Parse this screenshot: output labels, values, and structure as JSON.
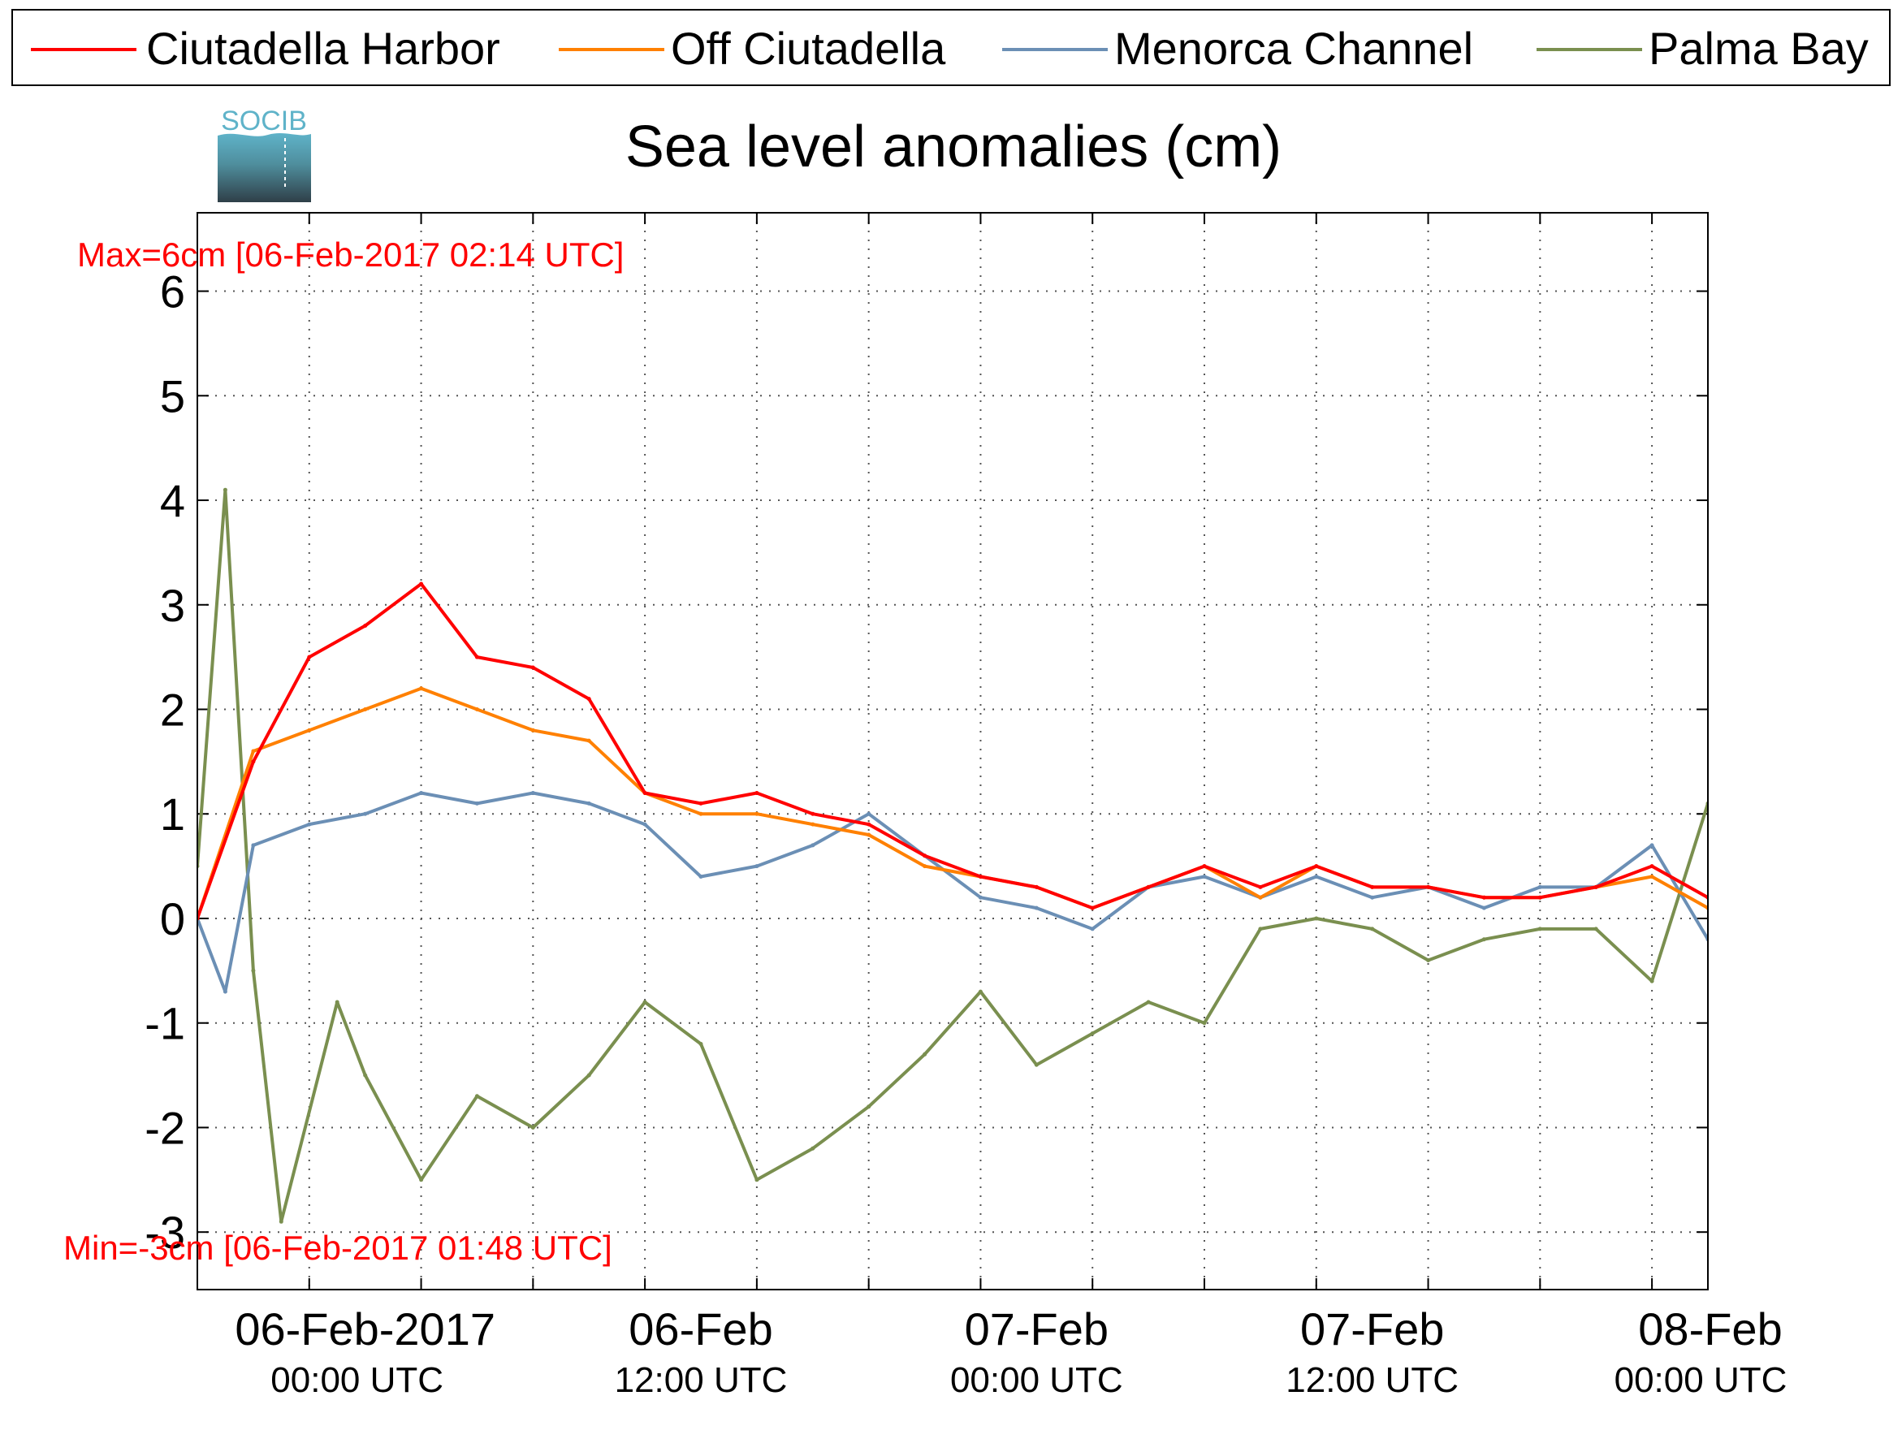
{
  "chart_data": {
    "type": "line",
    "title": "Sea level anomalies (cm)",
    "ylim": [
      -3.55,
      6.75
    ],
    "yticks": [
      -3,
      -2,
      -1,
      0,
      1,
      2,
      3,
      4,
      5,
      6
    ],
    "ytick_labels": [
      "-3",
      "-2",
      "-1",
      "0",
      "1",
      "2",
      "3",
      "4",
      "5",
      "6"
    ],
    "xlim": [
      "2017-02-05 18:00",
      "2017-02-08 00:00"
    ],
    "xticks_major": [
      {
        "x": "2017-02-06 00:00",
        "line1": "06-Feb-2017",
        "line2": "00:00 UTC"
      },
      {
        "x": "2017-02-06 12:00",
        "line1": "06-Feb",
        "line2": "12:00 UTC"
      },
      {
        "x": "2017-02-07 00:00",
        "line1": "07-Feb",
        "line2": "00:00 UTC"
      },
      {
        "x": "2017-02-07 12:00",
        "line1": "07-Feb",
        "line2": "12:00 UTC"
      },
      {
        "x": "2017-02-08 00:00",
        "line1": "08-Feb",
        "line2": "00:00 UTC"
      }
    ],
    "grid": true,
    "legend_position": "top",
    "annotations": {
      "max": "Max=6cm [06-Feb-2017 02:14 UTC]",
      "min": "Min=-3cm [06-Feb-2017 01:48 UTC]"
    },
    "logo_text": "SOCIB",
    "series": [
      {
        "name": "Ciutadella Harbor",
        "color": "#ff0000",
        "values": [
          [
            "2017-02-05 18:00",
            0.0
          ],
          [
            "2017-02-05 20:00",
            1.5
          ],
          [
            "2017-02-05 22:00",
            2.5
          ],
          [
            "2017-02-06 00:00",
            2.8
          ],
          [
            "2017-02-06 02:00",
            3.2
          ],
          [
            "2017-02-06 04:00",
            2.5
          ],
          [
            "2017-02-06 06:00",
            2.4
          ],
          [
            "2017-02-06 08:00",
            2.1
          ],
          [
            "2017-02-06 10:00",
            1.2
          ],
          [
            "2017-02-06 12:00",
            1.1
          ],
          [
            "2017-02-06 14:00",
            1.2
          ],
          [
            "2017-02-06 16:00",
            1.0
          ],
          [
            "2017-02-06 18:00",
            0.9
          ],
          [
            "2017-02-06 20:00",
            0.6
          ],
          [
            "2017-02-06 22:00",
            0.4
          ],
          [
            "2017-02-07 00:00",
            0.3
          ],
          [
            "2017-02-07 02:00",
            0.1
          ],
          [
            "2017-02-07 04:00",
            0.3
          ],
          [
            "2017-02-07 06:00",
            0.5
          ],
          [
            "2017-02-07 08:00",
            0.3
          ],
          [
            "2017-02-07 10:00",
            0.5
          ],
          [
            "2017-02-07 12:00",
            0.3
          ],
          [
            "2017-02-07 14:00",
            0.3
          ],
          [
            "2017-02-07 16:00",
            0.2
          ],
          [
            "2017-02-07 18:00",
            0.2
          ],
          [
            "2017-02-07 20:00",
            0.3
          ],
          [
            "2017-02-07 22:00",
            0.5
          ],
          [
            "2017-02-08 00:00",
            0.2
          ]
        ]
      },
      {
        "name": "Off Ciutadella",
        "color": "#ff8000",
        "values": [
          [
            "2017-02-05 18:00",
            0.0
          ],
          [
            "2017-02-05 20:00",
            1.6
          ],
          [
            "2017-02-05 22:00",
            1.8
          ],
          [
            "2017-02-06 00:00",
            2.0
          ],
          [
            "2017-02-06 02:00",
            2.2
          ],
          [
            "2017-02-06 04:00",
            2.0
          ],
          [
            "2017-02-06 06:00",
            1.8
          ],
          [
            "2017-02-06 08:00",
            1.7
          ],
          [
            "2017-02-06 10:00",
            1.2
          ],
          [
            "2017-02-06 12:00",
            1.0
          ],
          [
            "2017-02-06 14:00",
            1.0
          ],
          [
            "2017-02-06 16:00",
            0.9
          ],
          [
            "2017-02-06 18:00",
            0.8
          ],
          [
            "2017-02-06 20:00",
            0.5
          ],
          [
            "2017-02-06 22:00",
            0.4
          ],
          [
            "2017-02-07 00:00",
            0.3
          ],
          [
            "2017-02-07 02:00",
            0.1
          ],
          [
            "2017-02-07 04:00",
            0.3
          ],
          [
            "2017-02-07 06:00",
            0.5
          ],
          [
            "2017-02-07 08:00",
            0.2
          ],
          [
            "2017-02-07 10:00",
            0.5
          ],
          [
            "2017-02-07 12:00",
            0.3
          ],
          [
            "2017-02-07 14:00",
            0.3
          ],
          [
            "2017-02-07 16:00",
            0.2
          ],
          [
            "2017-02-07 18:00",
            0.2
          ],
          [
            "2017-02-07 20:00",
            0.3
          ],
          [
            "2017-02-07 22:00",
            0.4
          ],
          [
            "2017-02-08 00:00",
            0.1
          ]
        ]
      },
      {
        "name": "Menorca Channel",
        "color": "#6b8fb5",
        "values": [
          [
            "2017-02-05 18:00",
            0.0
          ],
          [
            "2017-02-05 19:00",
            -0.7
          ],
          [
            "2017-02-05 20:00",
            0.7
          ],
          [
            "2017-02-05 22:00",
            0.9
          ],
          [
            "2017-02-06 00:00",
            1.0
          ],
          [
            "2017-02-06 02:00",
            1.2
          ],
          [
            "2017-02-06 04:00",
            1.1
          ],
          [
            "2017-02-06 06:00",
            1.2
          ],
          [
            "2017-02-06 08:00",
            1.1
          ],
          [
            "2017-02-06 10:00",
            0.9
          ],
          [
            "2017-02-06 12:00",
            0.4
          ],
          [
            "2017-02-06 14:00",
            0.5
          ],
          [
            "2017-02-06 16:00",
            0.7
          ],
          [
            "2017-02-06 18:00",
            1.0
          ],
          [
            "2017-02-06 20:00",
            0.6
          ],
          [
            "2017-02-06 22:00",
            0.2
          ],
          [
            "2017-02-07 00:00",
            0.1
          ],
          [
            "2017-02-07 02:00",
            -0.1
          ],
          [
            "2017-02-07 04:00",
            0.3
          ],
          [
            "2017-02-07 06:00",
            0.4
          ],
          [
            "2017-02-07 08:00",
            0.2
          ],
          [
            "2017-02-07 10:00",
            0.4
          ],
          [
            "2017-02-07 12:00",
            0.2
          ],
          [
            "2017-02-07 14:00",
            0.3
          ],
          [
            "2017-02-07 16:00",
            0.1
          ],
          [
            "2017-02-07 18:00",
            0.3
          ],
          [
            "2017-02-07 20:00",
            0.3
          ],
          [
            "2017-02-07 22:00",
            0.7
          ],
          [
            "2017-02-08 00:00",
            -0.2
          ]
        ]
      },
      {
        "name": "Palma Bay",
        "color": "#7a8f4f",
        "values": [
          [
            "2017-02-05 18:00",
            0.5
          ],
          [
            "2017-02-05 19:00",
            4.1
          ],
          [
            "2017-02-05 20:00",
            -0.5
          ],
          [
            "2017-02-05 21:00",
            -2.9
          ],
          [
            "2017-02-05 23:00",
            -0.8
          ],
          [
            "2017-02-06 00:00",
            -1.5
          ],
          [
            "2017-02-06 02:00",
            -2.5
          ],
          [
            "2017-02-06 04:00",
            -1.7
          ],
          [
            "2017-02-06 06:00",
            -2.0
          ],
          [
            "2017-02-06 08:00",
            -1.5
          ],
          [
            "2017-02-06 10:00",
            -0.8
          ],
          [
            "2017-02-06 12:00",
            -1.2
          ],
          [
            "2017-02-06 14:00",
            -2.5
          ],
          [
            "2017-02-06 16:00",
            -2.2
          ],
          [
            "2017-02-06 18:00",
            -1.8
          ],
          [
            "2017-02-06 20:00",
            -1.3
          ],
          [
            "2017-02-06 22:00",
            -0.7
          ],
          [
            "2017-02-07 00:00",
            -1.4
          ],
          [
            "2017-02-07 02:00",
            -1.1
          ],
          [
            "2017-02-07 04:00",
            -0.8
          ],
          [
            "2017-02-07 06:00",
            -1.0
          ],
          [
            "2017-02-07 08:00",
            -0.1
          ],
          [
            "2017-02-07 10:00",
            0.0
          ],
          [
            "2017-02-07 12:00",
            -0.1
          ],
          [
            "2017-02-07 14:00",
            -0.4
          ],
          [
            "2017-02-07 16:00",
            -0.2
          ],
          [
            "2017-02-07 18:00",
            -0.1
          ],
          [
            "2017-02-07 20:00",
            -0.1
          ],
          [
            "2017-02-07 22:00",
            -0.6
          ],
          [
            "2017-02-08 00:00",
            1.1
          ]
        ]
      }
    ]
  }
}
